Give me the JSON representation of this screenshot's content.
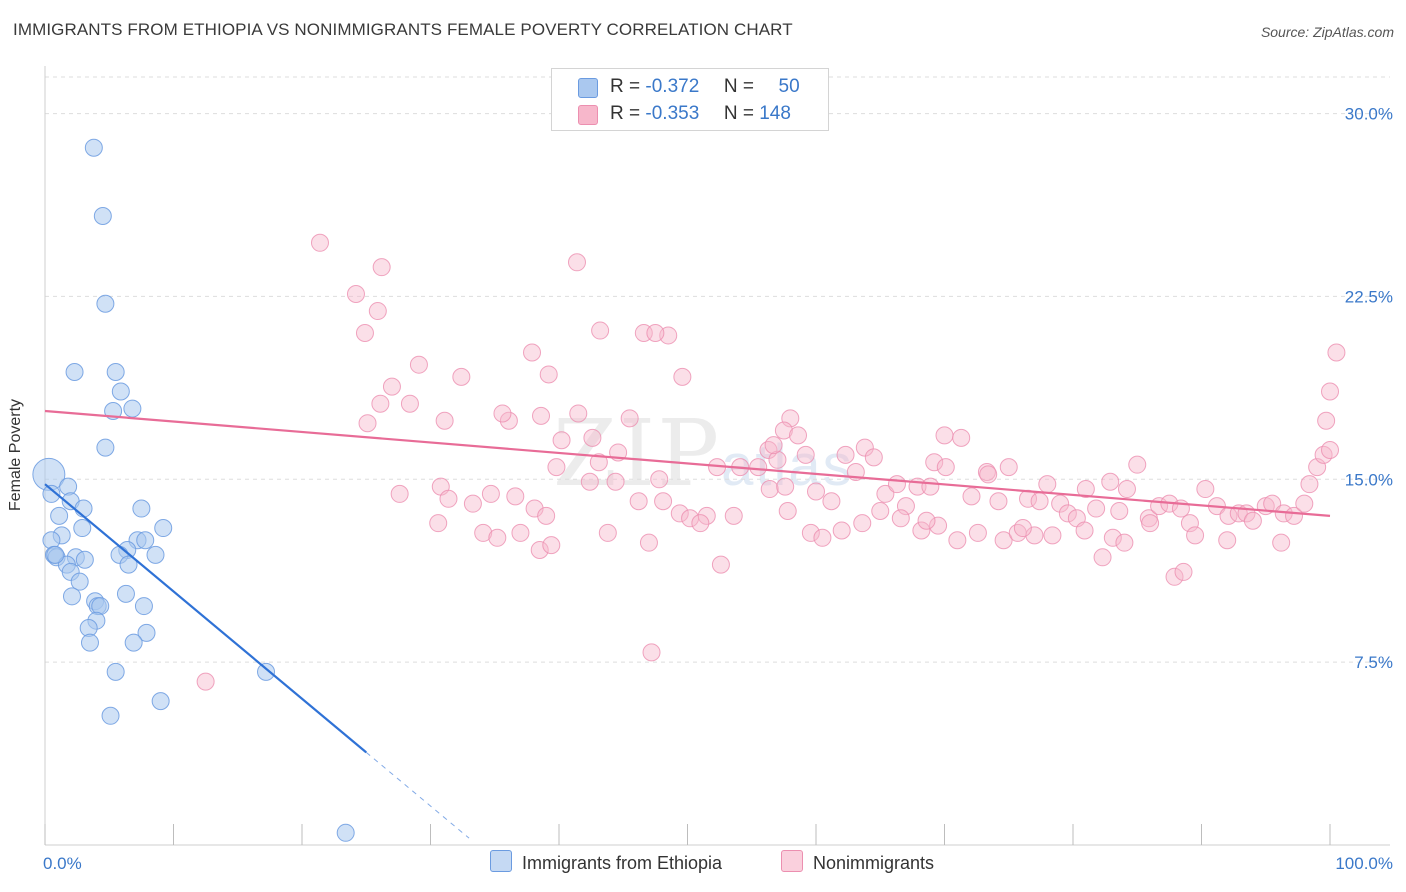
{
  "header": {
    "title": "IMMIGRANTS FROM ETHIOPIA VS NONIMMIGRANTS FEMALE POVERTY CORRELATION CHART",
    "source": "Source: ZipAtlas.com"
  },
  "legend": {
    "rows": [
      {
        "r_label": "R =",
        "r_value": "-0.372",
        "n_label": "N =",
        "n_value": "50"
      },
      {
        "r_label": "R =",
        "r_value": "-0.353",
        "n_label": "N =",
        "n_value": "148"
      }
    ]
  },
  "watermark": {
    "zip": "ZIP",
    "atlas": "atlas"
  },
  "colors": {
    "blue_fill": "#aac8ef",
    "blue_stroke": "#6b9be0",
    "blue_line": "#2f72d6",
    "pink_fill": "#f7b7cb",
    "pink_stroke": "#ec8fb0",
    "pink_line": "#e86c97",
    "grid": "#dddddd",
    "tick_label": "#3a78c9"
  },
  "chart_data": {
    "type": "scatter",
    "title": "IMMIGRANTS FROM ETHIOPIA VS NONIMMIGRANTS FEMALE POVERTY CORRELATION CHART",
    "xlabel": "",
    "ylabel": "Female Poverty",
    "xlim": [
      0,
      100
    ],
    "ylim": [
      0,
      31.5
    ],
    "x_tick_labels": [
      "0.0%",
      "100.0%"
    ],
    "y_ticks": [
      7.5,
      15.0,
      22.5,
      30.0
    ],
    "y_tick_labels": [
      "7.5%",
      "15.0%",
      "22.5%",
      "30.0%"
    ],
    "grid": true,
    "legend_position": "bottom-center",
    "series": [
      {
        "name": "Immigrants from Ethiopia",
        "r": -0.372,
        "n": 50,
        "trend": {
          "x0": 0.0,
          "y0": 14.8,
          "x1": 25.0,
          "y1": 3.8,
          "dash_to_x": 33.0
        },
        "points": [
          [
            3.8,
            28.6
          ],
          [
            4.5,
            25.8
          ],
          [
            4.7,
            22.2
          ],
          [
            2.3,
            19.4
          ],
          [
            5.5,
            19.4
          ],
          [
            5.9,
            18.6
          ],
          [
            6.8,
            17.9
          ],
          [
            5.3,
            17.8
          ],
          [
            4.7,
            16.3
          ],
          [
            0.3,
            15.2
          ],
          [
            0.5,
            14.4
          ],
          [
            1.8,
            14.7
          ],
          [
            2.0,
            14.1
          ],
          [
            3.0,
            13.8
          ],
          [
            7.5,
            13.8
          ],
          [
            1.1,
            13.5
          ],
          [
            2.9,
            13.0
          ],
          [
            9.2,
            13.0
          ],
          [
            1.3,
            12.7
          ],
          [
            0.5,
            12.5
          ],
          [
            7.2,
            12.5
          ],
          [
            7.8,
            12.5
          ],
          [
            6.4,
            12.1
          ],
          [
            0.7,
            11.9
          ],
          [
            0.9,
            11.8
          ],
          [
            2.4,
            11.8
          ],
          [
            3.1,
            11.7
          ],
          [
            5.8,
            11.9
          ],
          [
            8.6,
            11.9
          ],
          [
            1.7,
            11.5
          ],
          [
            2.0,
            11.2
          ],
          [
            6.5,
            11.5
          ],
          [
            2.7,
            10.8
          ],
          [
            2.1,
            10.2
          ],
          [
            6.3,
            10.3
          ],
          [
            3.9,
            10.0
          ],
          [
            4.1,
            9.8
          ],
          [
            4.3,
            9.8
          ],
          [
            7.7,
            9.8
          ],
          [
            4.0,
            9.2
          ],
          [
            3.4,
            8.9
          ],
          [
            7.9,
            8.7
          ],
          [
            3.5,
            8.3
          ],
          [
            6.9,
            8.3
          ],
          [
            5.5,
            7.1
          ],
          [
            17.2,
            7.1
          ],
          [
            9.0,
            5.9
          ],
          [
            5.1,
            5.3
          ],
          [
            23.4,
            0.5
          ],
          [
            0.8,
            11.9
          ]
        ]
      },
      {
        "name": "Nonimmigrants",
        "r": -0.353,
        "n": 148,
        "trend": {
          "x0": 0.0,
          "y0": 17.8,
          "x1": 100.0,
          "y1": 13.5
        },
        "points": [
          [
            12.5,
            6.7
          ],
          [
            21.4,
            24.7
          ],
          [
            24.2,
            22.6
          ],
          [
            26.2,
            23.7
          ],
          [
            25.9,
            21.9
          ],
          [
            24.9,
            21.0
          ],
          [
            41.4,
            23.9
          ],
          [
            31.1,
            17.4
          ],
          [
            27.0,
            18.8
          ],
          [
            29.1,
            19.7
          ],
          [
            28.4,
            18.1
          ],
          [
            32.4,
            19.2
          ],
          [
            36.1,
            17.4
          ],
          [
            25.1,
            17.3
          ],
          [
            26.1,
            18.1
          ],
          [
            37.9,
            20.2
          ],
          [
            39.2,
            19.3
          ],
          [
            38.6,
            17.6
          ],
          [
            41.5,
            17.7
          ],
          [
            46.6,
            21.0
          ],
          [
            48.5,
            20.9
          ],
          [
            43.2,
            21.1
          ],
          [
            47.5,
            21.0
          ],
          [
            49.6,
            19.2
          ],
          [
            45.5,
            17.5
          ],
          [
            35.6,
            17.7
          ],
          [
            40.2,
            16.6
          ],
          [
            42.6,
            16.7
          ],
          [
            44.6,
            16.1
          ],
          [
            39.8,
            15.5
          ],
          [
            34.7,
            14.4
          ],
          [
            36.6,
            14.3
          ],
          [
            27.6,
            14.4
          ],
          [
            30.8,
            14.7
          ],
          [
            31.4,
            14.2
          ],
          [
            33.3,
            14.0
          ],
          [
            38.1,
            13.8
          ],
          [
            39.0,
            13.5
          ],
          [
            42.4,
            14.9
          ],
          [
            43.1,
            15.7
          ],
          [
            44.4,
            14.9
          ],
          [
            46.2,
            14.1
          ],
          [
            47.8,
            15.0
          ],
          [
            48.1,
            14.1
          ],
          [
            49.4,
            13.6
          ],
          [
            50.2,
            13.4
          ],
          [
            51.5,
            13.5
          ],
          [
            52.3,
            15.5
          ],
          [
            53.6,
            13.5
          ],
          [
            54.1,
            15.5
          ],
          [
            30.6,
            13.2
          ],
          [
            34.1,
            12.8
          ],
          [
            35.2,
            12.6
          ],
          [
            37.0,
            12.8
          ],
          [
            38.5,
            12.1
          ],
          [
            39.4,
            12.3
          ],
          [
            43.8,
            12.8
          ],
          [
            47.0,
            12.4
          ],
          [
            51.0,
            13.2
          ],
          [
            52.6,
            11.5
          ],
          [
            55.5,
            15.5
          ],
          [
            56.3,
            16.2
          ],
          [
            57.0,
            15.8
          ],
          [
            56.7,
            16.4
          ],
          [
            58.0,
            17.5
          ],
          [
            57.5,
            17.0
          ],
          [
            58.6,
            16.8
          ],
          [
            56.4,
            14.6
          ],
          [
            57.6,
            14.7
          ],
          [
            59.2,
            16.0
          ],
          [
            60.0,
            14.5
          ],
          [
            61.2,
            14.1
          ],
          [
            62.3,
            16.0
          ],
          [
            63.1,
            15.3
          ],
          [
            63.8,
            16.3
          ],
          [
            64.5,
            15.9
          ],
          [
            65.4,
            14.4
          ],
          [
            66.3,
            14.8
          ],
          [
            67.0,
            13.9
          ],
          [
            67.9,
            14.7
          ],
          [
            68.9,
            14.7
          ],
          [
            70.0,
            16.8
          ],
          [
            69.2,
            15.7
          ],
          [
            70.1,
            15.5
          ],
          [
            71.3,
            16.7
          ],
          [
            72.1,
            14.3
          ],
          [
            73.3,
            15.3
          ],
          [
            73.4,
            15.2
          ],
          [
            74.2,
            14.1
          ],
          [
            75.0,
            15.5
          ],
          [
            76.5,
            14.2
          ],
          [
            77.4,
            14.1
          ],
          [
            78.0,
            14.8
          ],
          [
            79.0,
            14.0
          ],
          [
            79.6,
            13.6
          ],
          [
            80.3,
            13.4
          ],
          [
            81.0,
            14.6
          ],
          [
            81.8,
            13.8
          ],
          [
            82.9,
            14.9
          ],
          [
            83.6,
            13.7
          ],
          [
            84.2,
            14.6
          ],
          [
            85.0,
            15.6
          ],
          [
            85.9,
            13.4
          ],
          [
            86.7,
            13.9
          ],
          [
            87.5,
            14.0
          ],
          [
            88.4,
            13.8
          ],
          [
            89.1,
            13.2
          ],
          [
            90.3,
            14.6
          ],
          [
            91.2,
            13.9
          ],
          [
            92.1,
            13.5
          ],
          [
            92.9,
            13.6
          ],
          [
            93.5,
            13.6
          ],
          [
            94.0,
            13.3
          ],
          [
            95.0,
            13.9
          ],
          [
            95.5,
            14.0
          ],
          [
            96.4,
            13.6
          ],
          [
            97.2,
            13.5
          ],
          [
            98.0,
            14.0
          ],
          [
            98.4,
            14.8
          ],
          [
            99.0,
            15.5
          ],
          [
            99.5,
            16.0
          ],
          [
            100.0,
            18.6
          ],
          [
            100.5,
            20.2
          ],
          [
            99.7,
            17.4
          ],
          [
            100.0,
            16.2
          ],
          [
            57.8,
            13.7
          ],
          [
            59.6,
            12.8
          ],
          [
            60.5,
            12.6
          ],
          [
            62.0,
            12.9
          ],
          [
            63.6,
            13.2
          ],
          [
            65.0,
            13.7
          ],
          [
            66.6,
            13.4
          ],
          [
            68.2,
            12.9
          ],
          [
            69.5,
            13.1
          ],
          [
            71.0,
            12.5
          ],
          [
            72.6,
            12.8
          ],
          [
            74.6,
            12.5
          ],
          [
            75.7,
            12.8
          ],
          [
            77.0,
            12.7
          ],
          [
            78.4,
            12.7
          ],
          [
            80.9,
            12.9
          ],
          [
            82.3,
            11.8
          ],
          [
            83.1,
            12.6
          ],
          [
            84.0,
            12.4
          ],
          [
            86.0,
            13.2
          ],
          [
            87.9,
            11.0
          ],
          [
            88.6,
            11.2
          ],
          [
            92.0,
            12.5
          ],
          [
            96.2,
            12.4
          ],
          [
            47.2,
            7.9
          ],
          [
            68.6,
            13.3
          ],
          [
            76.1,
            13.0
          ],
          [
            89.5,
            12.7
          ]
        ]
      }
    ]
  },
  "bottom_legend": {
    "items": [
      {
        "label": "Immigrants from Ethiopia"
      },
      {
        "label": "Nonimmigrants"
      }
    ]
  }
}
